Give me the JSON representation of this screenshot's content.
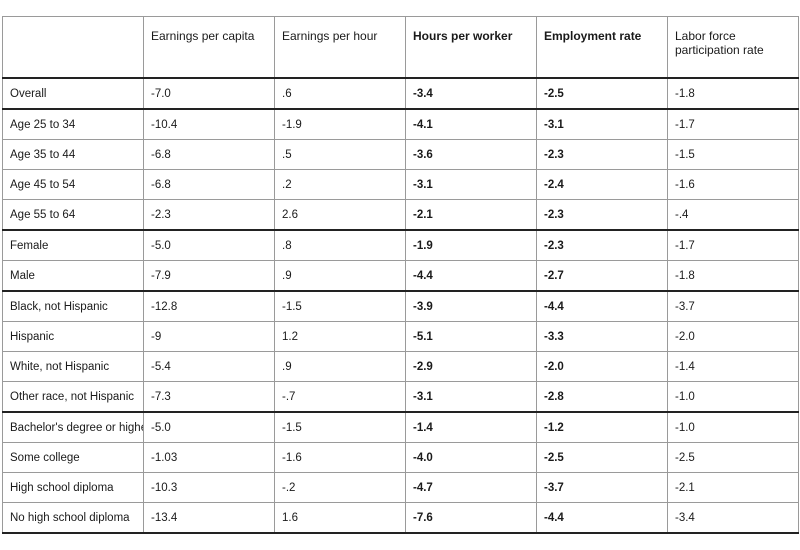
{
  "chart_data": {
    "type": "table",
    "columns": [
      "",
      "Earnings per capita",
      "Earnings per hour",
      "Hours per worker",
      "Employment rate",
      "Labor force participation rate"
    ],
    "bold_columns": [
      3,
      4
    ],
    "rows": [
      {
        "label": "Overall",
        "values": [
          "-7.0",
          ".6",
          "-3.4",
          "-2.5",
          "-1.8"
        ],
        "group_start": true
      },
      {
        "label": "Age 25 to 34",
        "values": [
          "-10.4",
          "-1.9",
          "-4.1",
          "-3.1",
          "-1.7"
        ],
        "group_start": true
      },
      {
        "label": "Age 35 to 44",
        "values": [
          "-6.8",
          ".5",
          "-3.6",
          "-2.3",
          "-1.5"
        ]
      },
      {
        "label": "Age 45 to 54",
        "values": [
          "-6.8",
          ".2",
          "-3.1",
          "-2.4",
          "-1.6"
        ]
      },
      {
        "label": "Age 55 to 64",
        "values": [
          "-2.3",
          "2.6",
          "-2.1",
          "-2.3",
          "-.4"
        ]
      },
      {
        "label": "Female",
        "values": [
          "-5.0",
          ".8",
          "-1.9",
          "-2.3",
          "-1.7"
        ],
        "group_start": true
      },
      {
        "label": "Male",
        "values": [
          "-7.9",
          ".9",
          "-4.4",
          "-2.7",
          "-1.8"
        ]
      },
      {
        "label": "Black, not Hispanic",
        "values": [
          "-12.8",
          "-1.5",
          "-3.9",
          "-4.4",
          "-3.7"
        ],
        "group_start": true
      },
      {
        "label": "Hispanic",
        "values": [
          "-9",
          "1.2",
          "-5.1",
          "-3.3",
          "-2.0"
        ]
      },
      {
        "label": "White, not Hispanic",
        "values": [
          "-5.4",
          ".9",
          "-2.9",
          "-2.0",
          "-1.4"
        ]
      },
      {
        "label": "Other race, not Hispanic",
        "values": [
          "-7.3",
          "-.7",
          "-3.1",
          "-2.8",
          "-1.0"
        ]
      },
      {
        "label": "Bachelor's degree or higher",
        "values": [
          "-5.0",
          "-1.5",
          "-1.4",
          "-1.2",
          "-1.0"
        ],
        "group_start": true
      },
      {
        "label": "Some college",
        "values": [
          "-1.03",
          "-1.6",
          "-4.0",
          "-2.5",
          "-2.5"
        ]
      },
      {
        "label": "High school diploma",
        "values": [
          "-10.3",
          "-.2",
          "-4.7",
          "-3.7",
          "-2.1"
        ]
      },
      {
        "label": "No high school diploma",
        "values": [
          "-13.4",
          "1.6",
          "-7.6",
          "-4.4",
          "-3.4"
        ]
      }
    ]
  }
}
